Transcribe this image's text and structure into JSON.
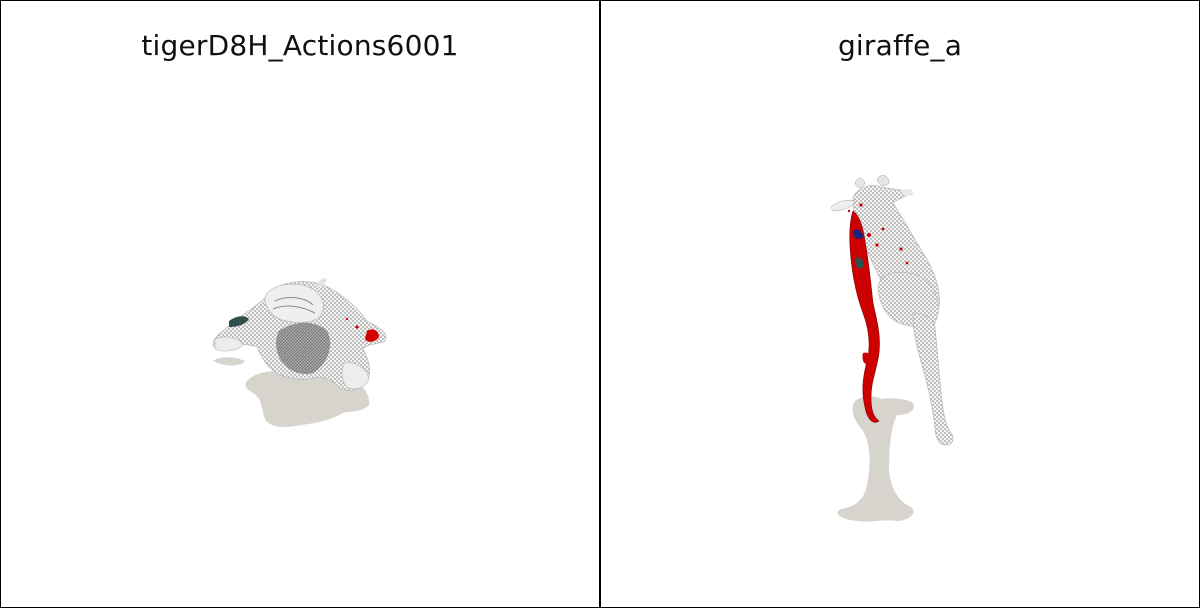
{
  "panels": [
    {
      "title": "tigerD8H_Actions6001",
      "model": "tiger",
      "colors": {
        "mesh": "#d9d9d9",
        "mesh_dark": "#6e6e6e",
        "highlight": "#d40000",
        "shadow": "#d7d4cd",
        "accent": "#2f4f4f"
      }
    },
    {
      "title": "giraffe_a",
      "model": "giraffe",
      "colors": {
        "mesh": "#dcdcdc",
        "mesh_dark": "#7a7a7a",
        "highlight": "#cc0000",
        "shadow": "#d7d4cd",
        "accent": "#1a237e"
      }
    }
  ]
}
